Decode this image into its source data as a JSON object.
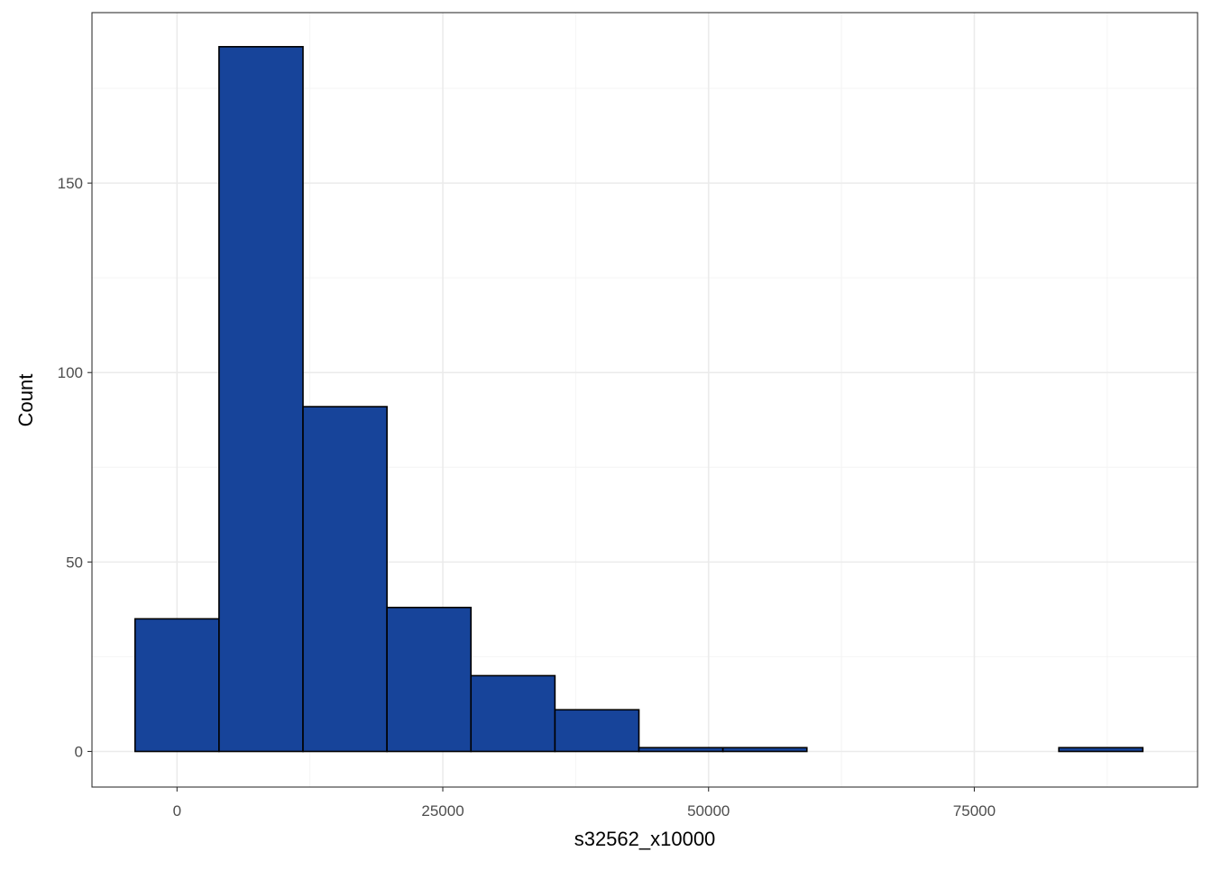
{
  "chart_data": {
    "type": "bar",
    "subtype": "histogram",
    "title": "",
    "xlabel": "s32562_x10000",
    "ylabel": "Count",
    "xlim": [
      -8000,
      96000
    ],
    "ylim": [
      -9.4,
      195
    ],
    "x_ticks": [
      0,
      25000,
      50000,
      75000
    ],
    "x_tick_labels": [
      "0",
      "25000",
      "50000",
      "75000"
    ],
    "y_ticks": [
      0,
      50,
      100,
      150
    ],
    "y_tick_labels": [
      "0",
      "50",
      "100",
      "150"
    ],
    "bin_width": 7900,
    "bins": [
      {
        "x0": -3950,
        "x1": 3950,
        "count": 35
      },
      {
        "x0": 3950,
        "x1": 11850,
        "count": 186
      },
      {
        "x0": 11850,
        "x1": 19750,
        "count": 91
      },
      {
        "x0": 19750,
        "x1": 27650,
        "count": 38
      },
      {
        "x0": 27650,
        "x1": 35550,
        "count": 20
      },
      {
        "x0": 35550,
        "x1": 43450,
        "count": 11
      },
      {
        "x0": 43450,
        "x1": 51350,
        "count": 1
      },
      {
        "x0": 51350,
        "x1": 59250,
        "count": 1
      },
      {
        "x0": 59250,
        "x1": 67150,
        "count": 0
      },
      {
        "x0": 67150,
        "x1": 75050,
        "count": 0
      },
      {
        "x0": 75050,
        "x1": 82950,
        "count": 0
      },
      {
        "x0": 82950,
        "x1": 90850,
        "count": 1
      }
    ],
    "grid": true,
    "legend": "none",
    "colors": {
      "bar_fill": "#17449A",
      "bar_stroke": "#000000",
      "grid_major": "#ebebeb",
      "grid_minor": "#f4f4f4",
      "panel_border": "#333333",
      "tick_text": "#4d4d4d",
      "axis_title": "#000000"
    }
  }
}
